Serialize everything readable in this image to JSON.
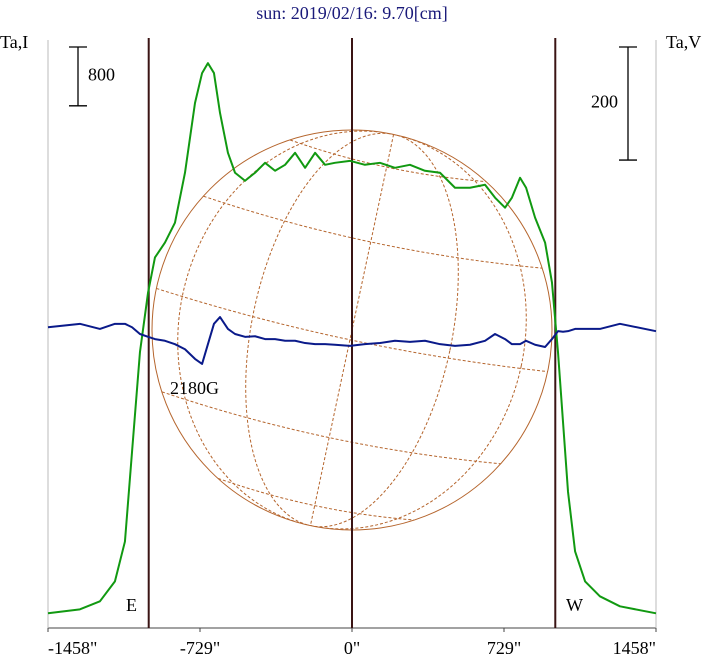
{
  "chart_data": {
    "type": "line",
    "title": "sun: 2019/02/16: 9.70[cm]",
    "y_label": "Ta,I",
    "y2_label": "Ta,V",
    "annotations": [
      "E",
      "W",
      "2180G"
    ],
    "xlim": [
      -1458,
      1458
    ],
    "xticks": [
      {
        "value": -1458,
        "label": "-1458\""
      },
      {
        "value": -729,
        "label": "-729\""
      },
      {
        "value": 0,
        "label": "0\""
      },
      {
        "value": 729,
        "label": "729\""
      },
      {
        "value": 1458,
        "label": "1458\""
      }
    ],
    "ylim": [
      -200,
      7800
    ],
    "y2lim": [
      -520,
      520
    ],
    "scale_bars": [
      {
        "value": 800,
        "axis": "y"
      },
      {
        "value": 200,
        "axis": "y2"
      }
    ],
    "vlines": [
      -975,
      0,
      975
    ],
    "x": [
      -1458,
      -1305,
      -1209,
      -1137,
      -1089,
      -1055,
      -1017,
      -978,
      -945,
      -897,
      -849,
      -801,
      -753,
      -719,
      -691,
      -662,
      -633,
      -595,
      -561,
      -513,
      -465,
      -417,
      -369,
      -321,
      -273,
      -225,
      -177,
      -129,
      -82,
      -10,
      62,
      134,
      206,
      278,
      350,
      422,
      494,
      566,
      638,
      686,
      734,
      767,
      806,
      835,
      878,
      926,
      959,
      988,
      1012,
      1036,
      1070,
      1118,
      1189,
      1285,
      1458
    ],
    "series": [
      {
        "name": "Ta,I",
        "color": "#119911",
        "axis": "y",
        "values": [
          0,
          54,
          163,
          434,
          976,
          2197,
          3553,
          4366,
          4841,
          5044,
          5315,
          5994,
          6943,
          7350,
          7485,
          7350,
          6807,
          6265,
          5994,
          5885,
          5994,
          6129,
          6021,
          6102,
          6265,
          6061,
          6265,
          6102,
          6129,
          6156,
          6102,
          6129,
          6061,
          6102,
          6021,
          5994,
          5790,
          5790,
          5831,
          5655,
          5519,
          5655,
          5926,
          5790,
          5383,
          5044,
          4502,
          3553,
          2604,
          1654,
          841,
          434,
          231,
          95,
          0
        ]
      },
      {
        "name": "Ta,V",
        "color": "#0a1a8a",
        "axis": "y2",
        "values": [
          12,
          18,
          9,
          18,
          18,
          12,
          0,
          -5,
          -9,
          -12,
          -18,
          -27,
          -44,
          -53,
          -18,
          18,
          30,
          9,
          0,
          -5,
          -4,
          -9,
          -9,
          -12,
          -12,
          -16,
          -18,
          -18,
          -19,
          -21,
          -18,
          -16,
          -12,
          -14,
          -12,
          -18,
          -21,
          -19,
          -12,
          0,
          -9,
          -18,
          -18,
          -12,
          -19,
          -23,
          -9,
          5,
          4,
          5,
          9,
          9,
          9,
          18,
          5
        ]
      }
    ]
  }
}
